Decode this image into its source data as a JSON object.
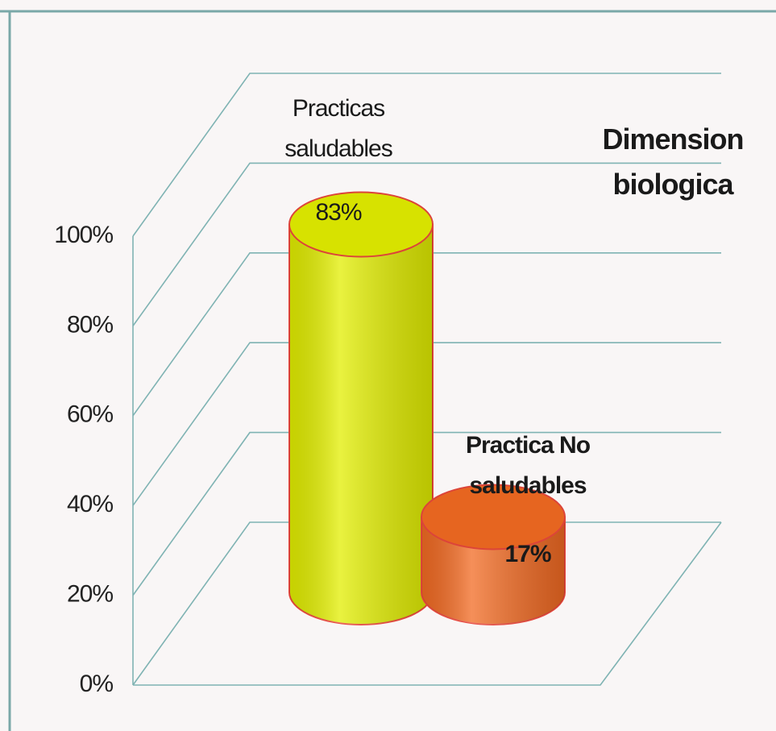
{
  "chart_data": {
    "type": "bar",
    "title": "Dimension biologica",
    "categories": [
      "Practicas saludables",
      "Practica No saludables"
    ],
    "values": [
      83,
      17
    ],
    "value_labels": [
      "83%",
      "17%"
    ],
    "colors": [
      "#e2ee00",
      "#f26a22"
    ],
    "ylim": [
      0,
      100
    ],
    "yticks": [
      {
        "value": 0,
        "label": "0%"
      },
      {
        "value": 20,
        "label": "20%"
      },
      {
        "value": 40,
        "label": "40%"
      },
      {
        "value": 60,
        "label": "60%"
      },
      {
        "value": 80,
        "label": "80%"
      },
      {
        "value": 100,
        "label": "100%"
      }
    ],
    "grid": true
  }
}
